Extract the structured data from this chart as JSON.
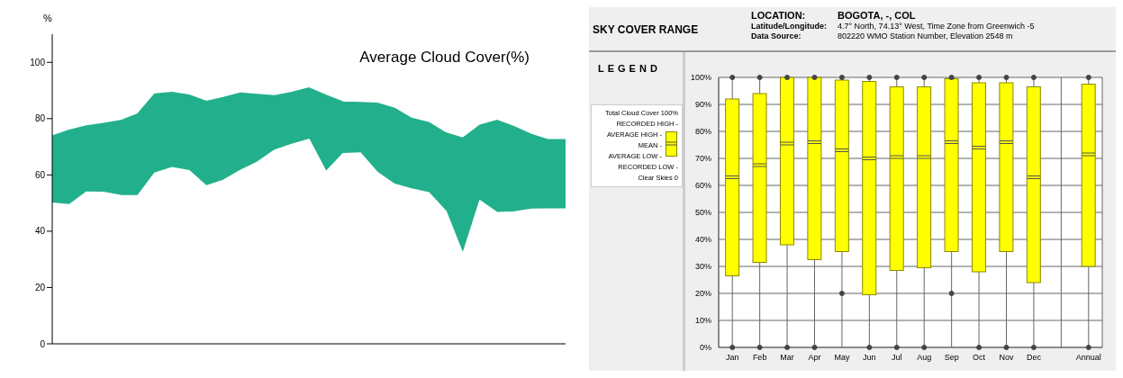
{
  "chart_data": [
    {
      "type": "area",
      "title": "Average Cloud Cover(%)",
      "ylabel": "%",
      "categories": [
        null,
        null,
        null,
        null,
        null,
        null,
        null,
        null,
        null,
        null,
        null,
        null,
        null,
        null,
        null,
        null,
        null,
        null,
        null,
        null,
        null,
        null,
        null,
        null,
        null,
        null,
        null,
        null,
        null,
        null,
        null
      ],
      "series": [
        {
          "color": "#22b08c",
          "values": [
            73.7,
            75.8,
            77.3,
            78.2,
            79.2,
            81.6,
            88.7,
            89.2,
            88.3,
            86,
            87.4,
            89,
            88.5,
            88,
            89.2,
            90.8,
            88.2,
            85.8,
            85.6,
            85.4,
            83.6,
            80,
            78.5,
            74.8,
            73,
            77.6,
            79.3,
            77,
            74.3,
            72.4,
            72.4
          ]
        },
        {
          "color": "#ffffff",
          "values": [
            49.9,
            49.3,
            53.8,
            53.7,
            52.6,
            52.5,
            60.6,
            62.5,
            61.4,
            56,
            58,
            61.5,
            64.5,
            68.7,
            70.8,
            72.5,
            61,
            67.5,
            67.7,
            60.8,
            56.6,
            54.9,
            53.6,
            47,
            31.7,
            50.7,
            46.5,
            46.8,
            47.7,
            47.8,
            47.8
          ]
        }
      ],
      "ylim": [
        0,
        110
      ],
      "yticks": [
        0,
        20,
        40,
        60,
        80,
        100
      ],
      "grid": false,
      "legend": false,
      "tick_labels": "y"
    },
    {
      "type": "box",
      "title": "SKY COVER RANGE",
      "categories": [
        "Jan",
        "Feb",
        "Mar",
        "Apr",
        "May",
        "Jun",
        "Jul",
        "Aug",
        "Sep",
        "Oct",
        "Nov",
        "Dec",
        null,
        "Annual"
      ],
      "color": "#ffff00",
      "boxes": [
        {
          "low": 26.5,
          "q1": 26.5,
          "median": 63,
          "q3": 92,
          "high": 92
        },
        {
          "low": 31.5,
          "q1": 31.5,
          "median": 67.5,
          "q3": 94,
          "high": 94
        },
        {
          "low": 38,
          "q1": 38,
          "median": 75.5,
          "q3": 100,
          "high": 100
        },
        {
          "low": 32.5,
          "q1": 32.5,
          "median": 76,
          "q3": 100,
          "high": 100
        },
        {
          "low": 35.5,
          "q1": 35.5,
          "median": 73,
          "q3": 99,
          "high": 99
        },
        {
          "low": 19.5,
          "q1": 19.5,
          "median": 70,
          "q3": 98.5,
          "high": 98.5
        },
        {
          "low": 28.5,
          "q1": 28.5,
          "median": 70.5,
          "q3": 96.5,
          "high": 96.5
        },
        {
          "low": 29.5,
          "q1": 29.5,
          "median": 70.5,
          "q3": 96.5,
          "high": 96.5
        },
        {
          "low": 35.5,
          "q1": 35.5,
          "median": 76,
          "q3": 99.5,
          "high": 99.5
        },
        {
          "low": 28,
          "q1": 28,
          "median": 74,
          "q3": 98,
          "high": 98
        },
        {
          "low": 35.5,
          "q1": 35.5,
          "median": 76,
          "q3": 98,
          "high": 98
        },
        {
          "low": 24,
          "q1": 24,
          "median": 63,
          "q3": 96.5,
          "high": 96.5
        },
        null,
        {
          "low": 30,
          "q1": 30,
          "median": 71.5,
          "q3": 97.5,
          "high": 97.5
        }
      ],
      "series": [
        {
          "type": "scatter",
          "color": "#444444",
          "x": [
            "Jan",
            "Feb",
            "Mar",
            "Apr",
            "May",
            "Jun",
            "Jul",
            "Aug",
            "Sep",
            "Oct",
            "Nov",
            "Dec",
            "Annual"
          ],
          "values": [
            100,
            100,
            100,
            100,
            100,
            100,
            100,
            100,
            100,
            100,
            100,
            100,
            100
          ]
        },
        {
          "type": "scatter",
          "color": "#444444",
          "x": [
            "Jan",
            "Feb",
            "Mar",
            "Apr",
            "May",
            "Jun",
            "Jul",
            "Aug",
            "Sep",
            "Oct",
            "Nov",
            "Dec",
            "Annual"
          ],
          "values": [
            0,
            0,
            0,
            0,
            20,
            0,
            0,
            0,
            20,
            0,
            0,
            0,
            0
          ]
        }
      ],
      "ylim": [
        0,
        100
      ],
      "yticks": [
        {
          "value": 0,
          "label": "0%"
        },
        {
          "value": 10,
          "label": "10%"
        },
        {
          "value": 20,
          "label": "20%"
        },
        {
          "value": 30,
          "label": "30%"
        },
        {
          "value": 40,
          "label": "40%"
        },
        {
          "value": 50,
          "label": "50%"
        },
        {
          "value": 60,
          "label": "60%"
        },
        {
          "value": 70,
          "label": "70%"
        },
        {
          "value": 80,
          "label": "80%"
        },
        {
          "value": 90,
          "label": "90%"
        },
        {
          "value": 100,
          "label": "100%"
        }
      ],
      "grid": true,
      "legend": false,
      "annotations": [
        "LOCATION:",
        "BOGOTA, -, COL",
        "Latitude/Longitude:",
        "4.7° North, 74.13° West, Time Zone from Greenwich -5",
        "Data Source:",
        "802220 WMO Station Number, Elevation 2548 m",
        "LEGEND",
        "Total Cloud Cover 100%",
        "RECORDED HIGH -",
        "AVERAGE HIGH -",
        "MEAN -",
        "AVERAGE LOW -",
        "RECORDED LOW -",
        "Clear Skies 0"
      ]
    }
  ]
}
